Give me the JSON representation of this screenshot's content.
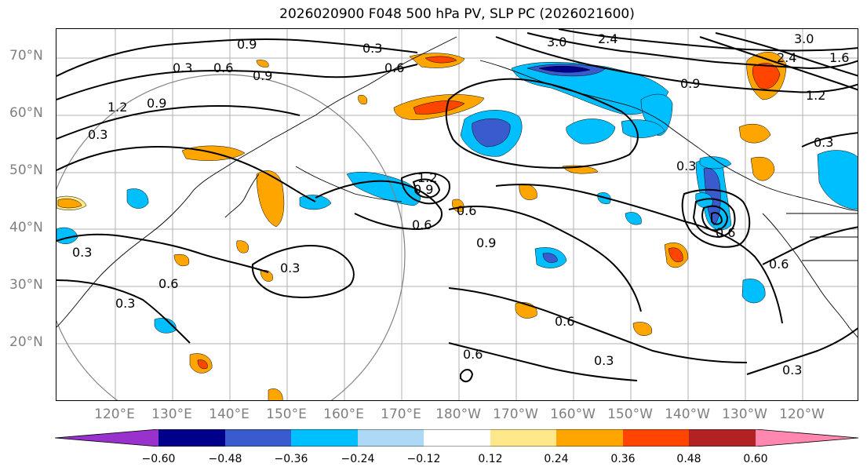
{
  "title": "2026020900 F048 500 hPa PV, SLP PC (2026021600)",
  "latitude_labels": [
    "70°N",
    "60°N",
    "50°N",
    "40°N",
    "30°N",
    "20°N"
  ],
  "longitude_labels": [
    "120°E",
    "130°E",
    "140°E",
    "150°E",
    "160°E",
    "170°E",
    "180°W",
    "170°W",
    "160°W",
    "150°W",
    "140°W",
    "130°W",
    "120°W"
  ],
  "contour_labels": [
    "0.9",
    "0.3",
    "0.6",
    "0.9",
    "3.0",
    "2.4",
    "3.0",
    "2.4",
    "1.6",
    "0.3",
    "0.6",
    "0.9",
    "1.2",
    "0.9",
    "1.2",
    "0.3",
    "0.3",
    "0.6",
    "0.9",
    "0.6",
    "0.9",
    "0.3",
    "0.3",
    "0.6",
    "0.6",
    "0.6",
    "0.3",
    "0.3",
    "0.6",
    "0.3",
    "0.3",
    "0.6",
    "1.2"
  ],
  "colorbar": {
    "colors": [
      "#9932CC",
      "#00008B",
      "#3A5BCD",
      "#00BFFF",
      "#ADD8F6",
      "#FFFFFF",
      "#FFE88A",
      "#FFA500",
      "#FF4500",
      "#B22222",
      "#FF87B0"
    ],
    "tick_labels": [
      "−0.60",
      "−0.48",
      "−0.36",
      "−0.24",
      "−0.12",
      "0.12",
      "0.24",
      "0.36",
      "0.48",
      "0.60"
    ],
    "tick_values": [
      -0.6,
      -0.48,
      -0.36,
      -0.24,
      -0.12,
      0.12,
      0.24,
      0.36,
      0.48,
      0.6
    ]
  },
  "shading_colors": {
    "neg_light": "#ADD8F6",
    "neg_mid": "#00BFFF",
    "neg_strong": "#3A5BCD",
    "neg_max": "#00008B",
    "pos_light": "#FFE88A",
    "pos_mid": "#FFA500",
    "pos_strong": "#FF4500"
  }
}
